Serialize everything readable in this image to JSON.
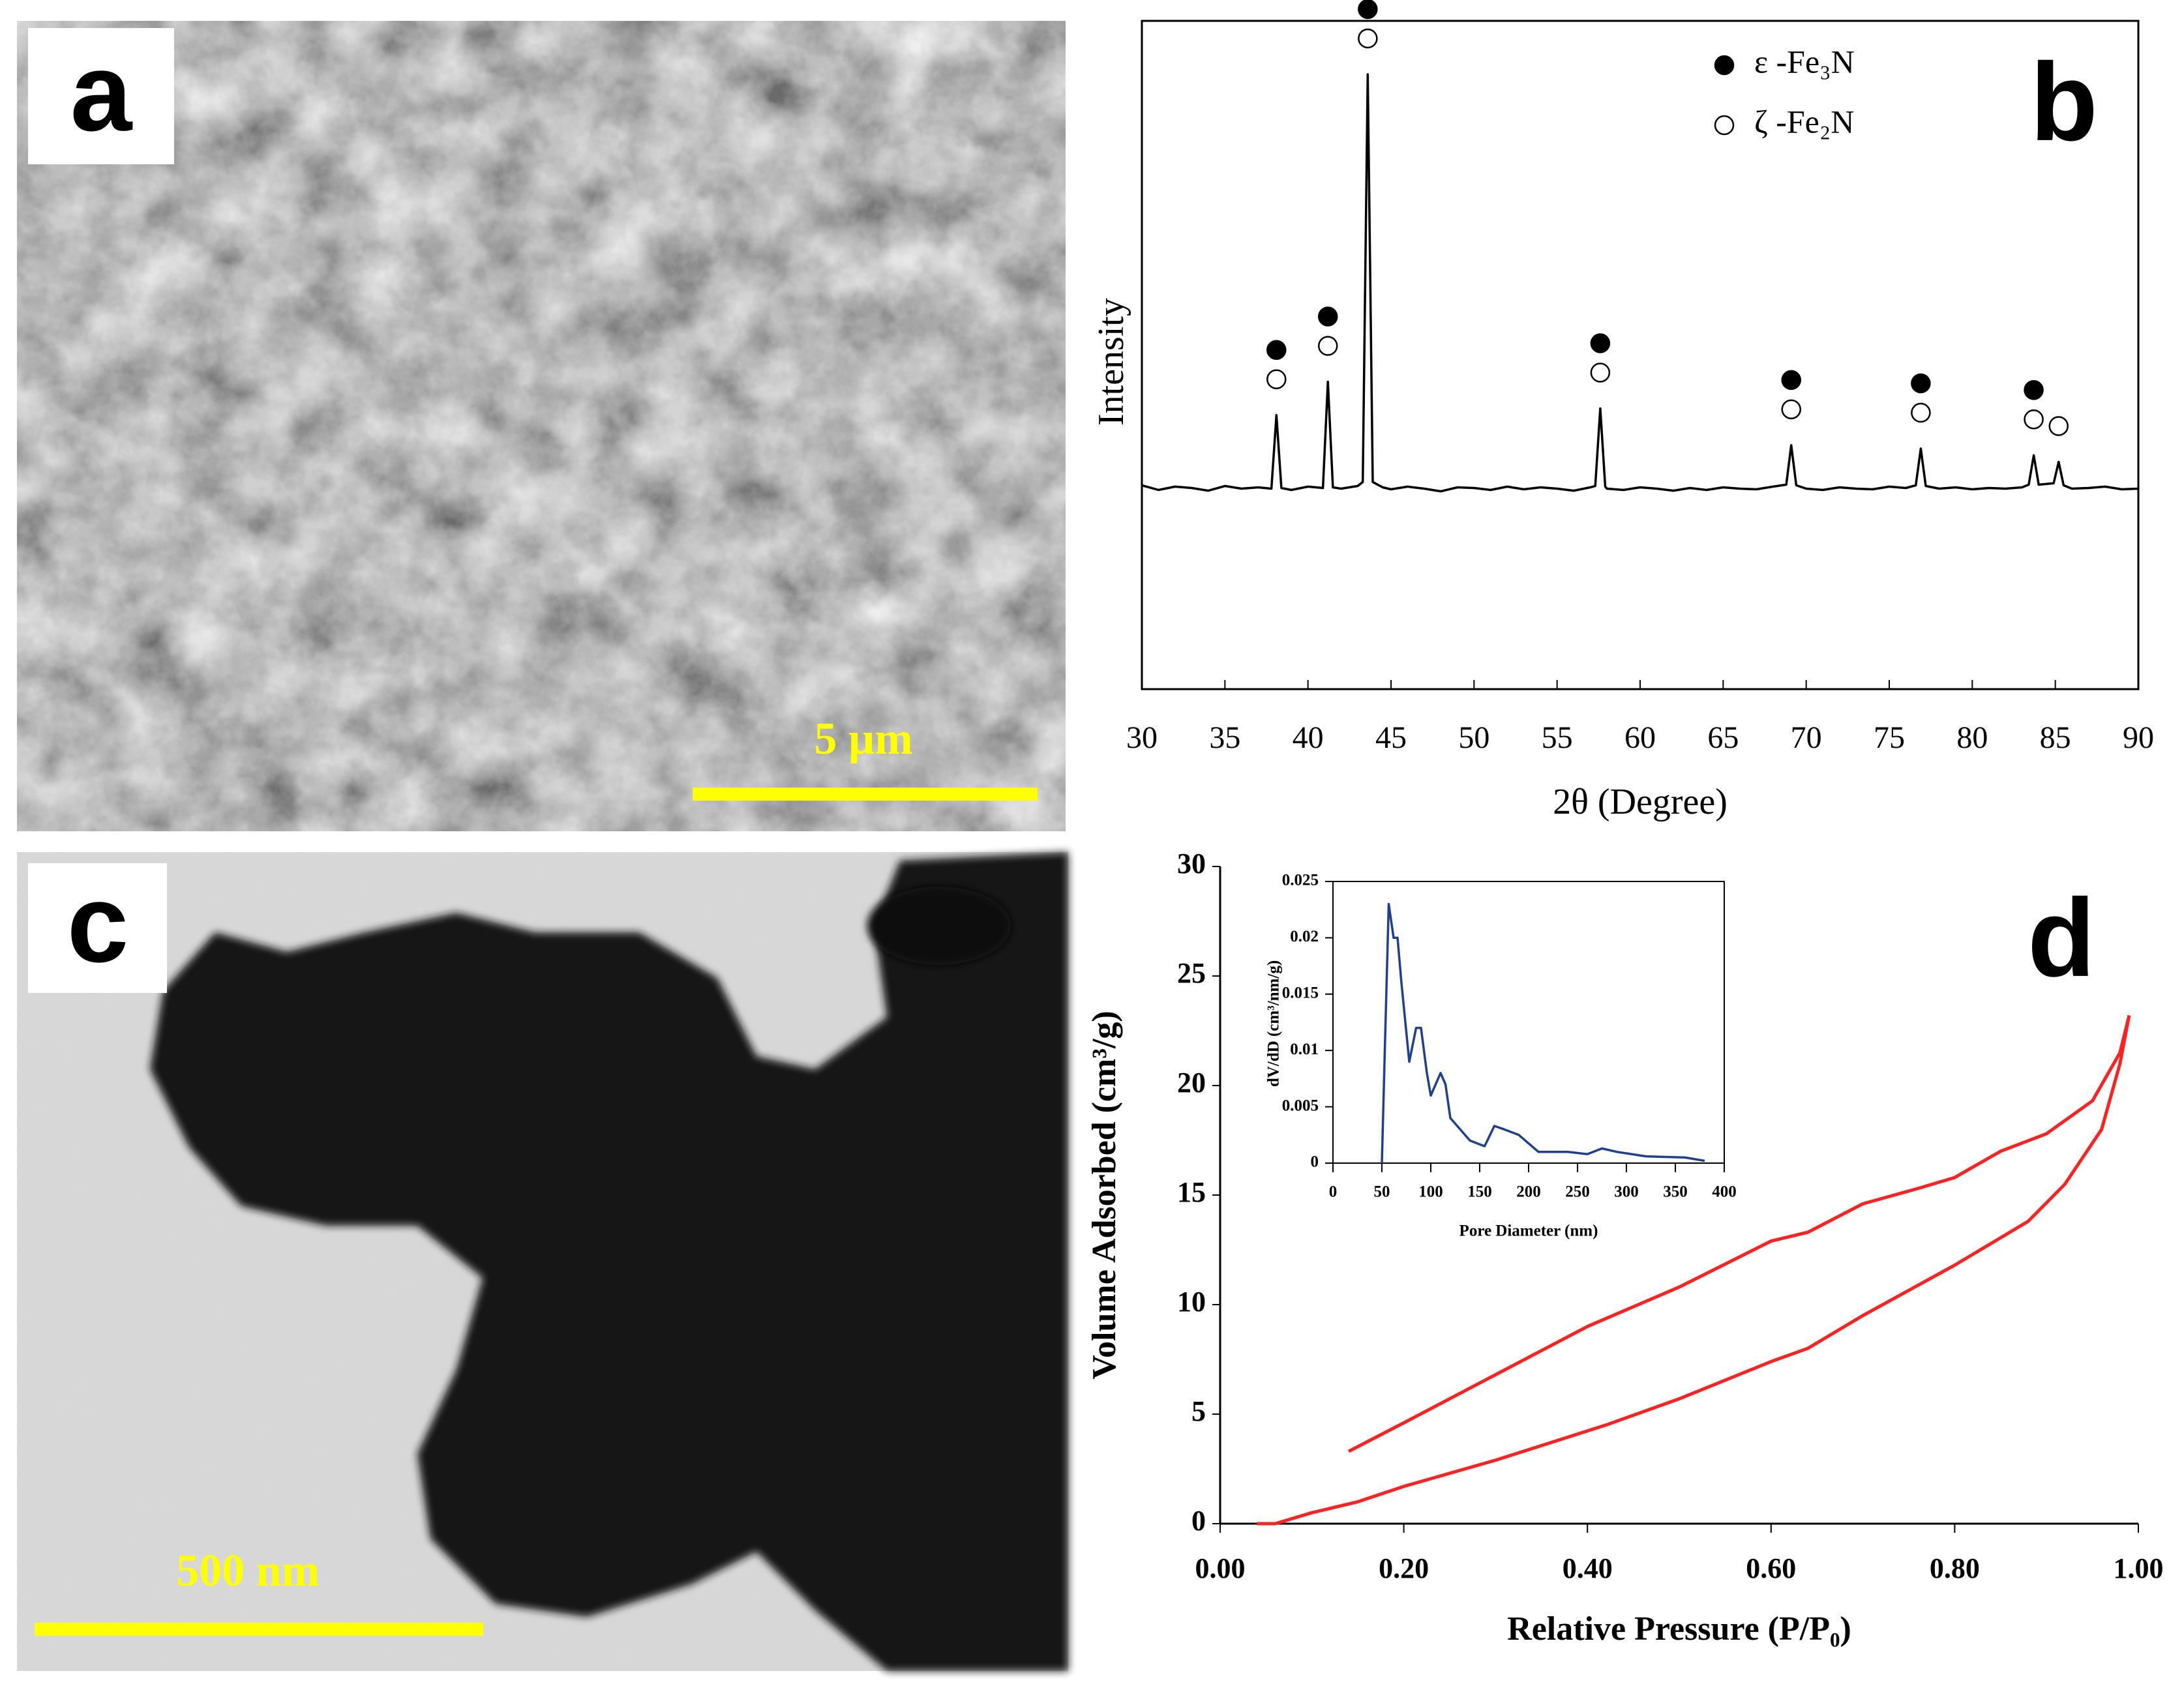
{
  "figure": {
    "panel_labels": [
      "a",
      "b",
      "c",
      "d"
    ],
    "scale_bars": [
      "5 µm",
      "500 nm"
    ]
  },
  "chart_data": [
    {
      "type": "line",
      "xlabel": "2θ (Degree)",
      "ylabel": "Intensity",
      "xlim": [
        30,
        90
      ],
      "xticks": [
        30,
        35,
        40,
        45,
        50,
        55,
        60,
        65,
        70,
        75,
        80,
        85,
        90
      ],
      "ylim": [
        0,
        100
      ],
      "series": [
        {
          "color": "#000000",
          "x": [
            30,
            31,
            32,
            33,
            34,
            35,
            36,
            37,
            37.8,
            38.1,
            38.4,
            39,
            40,
            40.9,
            41.2,
            41.5,
            42,
            43,
            43.3,
            43.6,
            43.9,
            44.5,
            45,
            46,
            47,
            48,
            49,
            50,
            51,
            52,
            53,
            54,
            55,
            56,
            57,
            57.3,
            57.6,
            57.9,
            58,
            59,
            60,
            61,
            62,
            63,
            64,
            65,
            66,
            67,
            68,
            68.8,
            69.1,
            69.4,
            70,
            71,
            72,
            73,
            74,
            75,
            76,
            76.6,
            76.9,
            77.2,
            78,
            79,
            80,
            81,
            82,
            83,
            83.4,
            83.7,
            84,
            84.9,
            85.2,
            85.5,
            86,
            87,
            88,
            89,
            90
          ],
          "values": [
            30.5,
            29.8,
            30.3,
            30.1,
            29.7,
            30.4,
            30.0,
            30.2,
            30.0,
            41,
            30.1,
            29.8,
            30.3,
            30.1,
            46,
            30.2,
            30.0,
            30.4,
            31,
            92,
            31,
            30.2,
            29.9,
            30.3,
            30.0,
            29.6,
            30.2,
            30.1,
            29.8,
            30.3,
            29.9,
            30.2,
            30.0,
            29.7,
            30.2,
            30.4,
            42,
            30.3,
            30.0,
            29.8,
            30.2,
            30.0,
            29.7,
            30.1,
            29.8,
            30.2,
            30.0,
            29.9,
            30.3,
            30.6,
            36.5,
            30.5,
            30.0,
            29.8,
            30.2,
            30.0,
            29.9,
            30.3,
            30.1,
            30.5,
            36,
            30.4,
            30.0,
            30.2,
            29.9,
            30.1,
            30.0,
            30.2,
            30.6,
            35,
            30.6,
            30.8,
            34,
            30.5,
            30.0,
            30.1,
            30.3,
            29.9,
            30.0
          ]
        }
      ],
      "markers": [
        {
          "name": "ε -Fe₃N",
          "style": "filled",
          "color": "#000000",
          "x": [
            38.1,
            41.2,
            43.6,
            57.6,
            69.1,
            76.9,
            83.7
          ]
        },
        {
          "name": "ζ -Fe₂N",
          "style": "open",
          "color": "#000000",
          "x": [
            38.1,
            41.2,
            43.6,
            57.6,
            69.1,
            76.9,
            83.7,
            85.2
          ]
        }
      ]
    },
    {
      "type": "line",
      "xlabel": "Relative Pressure (P/P₀)",
      "ylabel": "Volume Adsorbed (cm³/g)",
      "xlim": [
        0,
        1
      ],
      "xticks": [
        {
          "value": 0,
          "label": "0.00"
        },
        {
          "value": 0.2,
          "label": "0.20"
        },
        {
          "value": 0.4,
          "label": "0.40"
        },
        {
          "value": 0.6,
          "label": "0.60"
        },
        {
          "value": 0.8,
          "label": "0.80"
        },
        {
          "value": 1,
          "label": "1.00"
        }
      ],
      "ylim": [
        0,
        30
      ],
      "yticks": [
        0,
        5,
        10,
        15,
        20,
        25,
        30
      ],
      "series": [
        {
          "color": "#ff2020",
          "x": [
            0.04,
            0.06,
            0.1,
            0.15,
            0.2,
            0.3,
            0.42,
            0.5,
            0.6,
            0.64,
            0.7,
            0.8,
            0.88,
            0.92,
            0.96,
            0.98,
            0.99
          ],
          "values": [
            0,
            0,
            0.5,
            1,
            1.7,
            2.9,
            4.5,
            5.7,
            7.4,
            8.0,
            9.5,
            11.8,
            13.8,
            15.5,
            18,
            21,
            23.2
          ]
        },
        {
          "color": "#ff2020",
          "x": [
            0.14,
            0.2,
            0.3,
            0.4,
            0.5,
            0.6,
            0.64,
            0.7,
            0.76,
            0.8,
            0.85,
            0.9,
            0.95,
            0.98,
            0.99
          ],
          "values": [
            3.3,
            4.6,
            6.8,
            9.0,
            10.8,
            12.9,
            13.3,
            14.6,
            15.3,
            15.8,
            17.0,
            17.8,
            19.3,
            21.5,
            23.2
          ]
        }
      ]
    },
    {
      "type": "line",
      "xlabel": "Pore Diameter (nm)",
      "ylabel": "dV/dD (cm³/nm/g)",
      "xlim": [
        0,
        400
      ],
      "xticks": [
        0,
        50,
        100,
        150,
        200,
        250,
        300,
        350,
        400
      ],
      "ylim": [
        0,
        0.025
      ],
      "yticks": [
        0,
        0.005,
        0.01,
        0.015,
        0.02,
        0.025
      ],
      "series": [
        {
          "color": "#1f3f8f",
          "x": [
            50,
            53,
            57,
            62,
            66,
            70,
            78,
            85,
            90,
            96,
            100,
            110,
            115,
            120,
            140,
            155,
            165,
            175,
            190,
            210,
            240,
            260,
            275,
            290,
            320,
            360,
            380
          ],
          "values": [
            0,
            0.01,
            0.023,
            0.02,
            0.02,
            0.016,
            0.009,
            0.012,
            0.012,
            0.008,
            0.006,
            0.008,
            0.007,
            0.004,
            0.002,
            0.0015,
            0.0033,
            0.003,
            0.0025,
            0.001,
            0.001,
            0.0008,
            0.0013,
            0.001,
            0.0006,
            0.0005,
            0.0002
          ]
        }
      ]
    }
  ]
}
